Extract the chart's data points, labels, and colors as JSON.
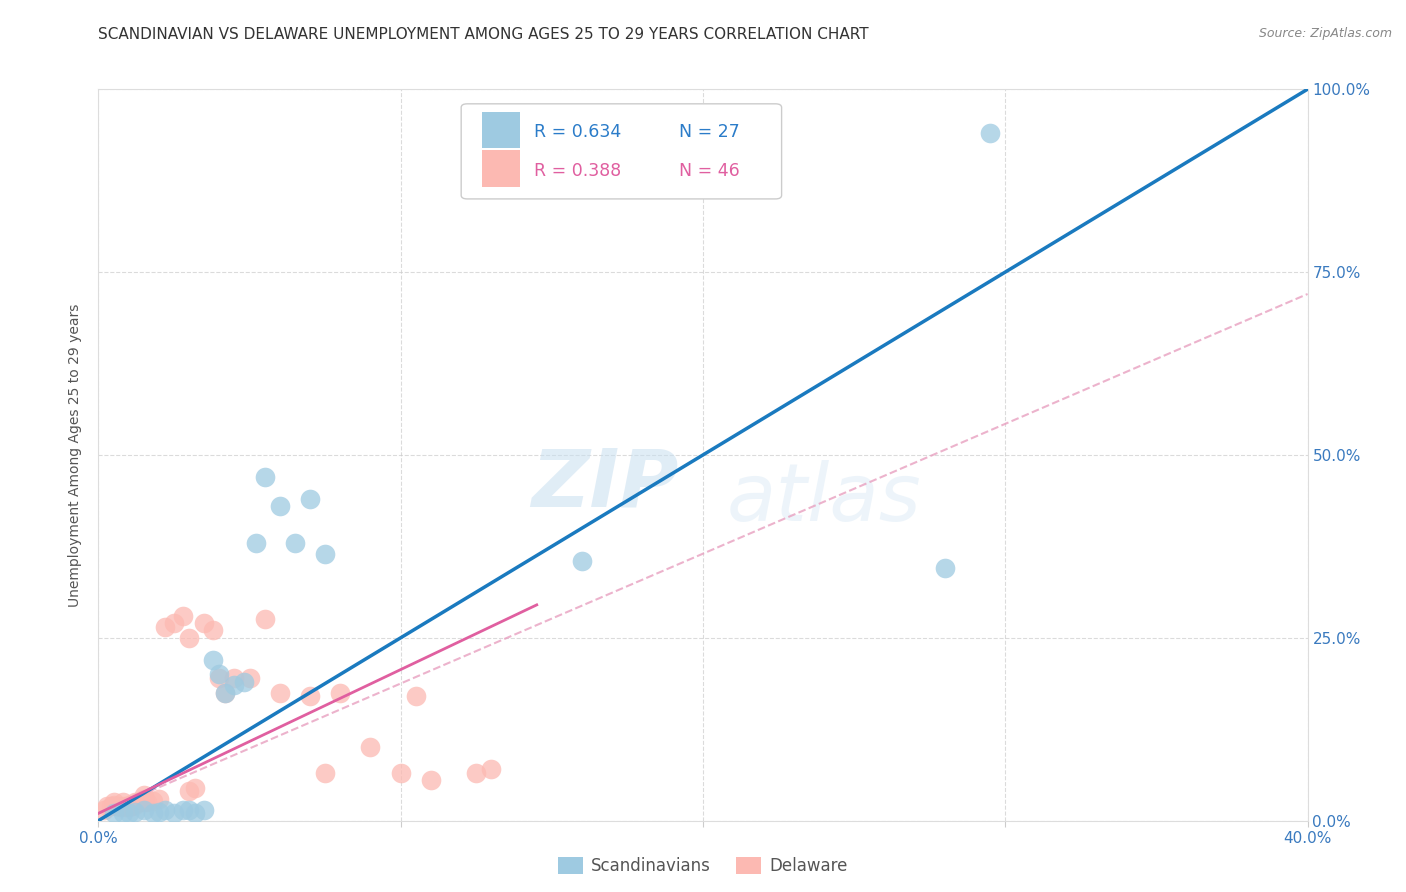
{
  "title": "SCANDINAVIAN VS DELAWARE UNEMPLOYMENT AMONG AGES 25 TO 29 YEARS CORRELATION CHART",
  "source": "Source: ZipAtlas.com",
  "ylabel": "Unemployment Among Ages 25 to 29 years",
  "xlim": [
    0.0,
    0.4
  ],
  "ylim": [
    0.0,
    1.0
  ],
  "xticks": [
    0.0,
    0.1,
    0.2,
    0.3,
    0.4
  ],
  "yticks": [
    0.0,
    0.25,
    0.5,
    0.75,
    1.0
  ],
  "xticklabels": [
    "0.0%",
    "",
    "",
    "",
    "40.0%"
  ],
  "yticklabels": [
    "0.0%",
    "25.0%",
    "50.0%",
    "75.0%",
    "100.0%"
  ],
  "title_fontsize": 11,
  "axis_label_fontsize": 10,
  "tick_fontsize": 11,
  "blue_color": "#9ecae1",
  "pink_color": "#fcb9b2",
  "blue_line_color": "#1a7abf",
  "pink_line_color": "#e05fa0",
  "pink_dash_color": "#e8a0c0",
  "legend_R_blue": "R = 0.634",
  "legend_N_blue": "N = 27",
  "legend_R_pink": "R = 0.388",
  "legend_N_pink": "N = 46",
  "watermark_zip": "ZIP",
  "watermark_atlas": "atlas",
  "blue_scatter_x": [
    0.005,
    0.008,
    0.01,
    0.012,
    0.015,
    0.018,
    0.02,
    0.022,
    0.025,
    0.028,
    0.03,
    0.032,
    0.035,
    0.038,
    0.04,
    0.042,
    0.045,
    0.048,
    0.052,
    0.055,
    0.06,
    0.065,
    0.07,
    0.075,
    0.16,
    0.28,
    0.295
  ],
  "blue_scatter_y": [
    0.01,
    0.01,
    0.01,
    0.012,
    0.015,
    0.01,
    0.012,
    0.015,
    0.01,
    0.015,
    0.015,
    0.01,
    0.015,
    0.22,
    0.2,
    0.175,
    0.185,
    0.19,
    0.38,
    0.47,
    0.43,
    0.38,
    0.44,
    0.365,
    0.355,
    0.345,
    0.94
  ],
  "pink_scatter_x": [
    0.002,
    0.003,
    0.004,
    0.005,
    0.005,
    0.006,
    0.007,
    0.008,
    0.008,
    0.009,
    0.01,
    0.01,
    0.01,
    0.011,
    0.012,
    0.012,
    0.013,
    0.015,
    0.015,
    0.015,
    0.016,
    0.018,
    0.02,
    0.022,
    0.025,
    0.028,
    0.03,
    0.03,
    0.032,
    0.035,
    0.038,
    0.04,
    0.042,
    0.045,
    0.05,
    0.055,
    0.06,
    0.07,
    0.075,
    0.08,
    0.09,
    0.1,
    0.105,
    0.11,
    0.125,
    0.13
  ],
  "pink_scatter_y": [
    0.015,
    0.02,
    0.02,
    0.022,
    0.025,
    0.02,
    0.018,
    0.02,
    0.025,
    0.018,
    0.018,
    0.02,
    0.022,
    0.02,
    0.022,
    0.025,
    0.025,
    0.025,
    0.03,
    0.035,
    0.025,
    0.027,
    0.03,
    0.265,
    0.27,
    0.28,
    0.04,
    0.25,
    0.045,
    0.27,
    0.26,
    0.195,
    0.175,
    0.195,
    0.195,
    0.275,
    0.175,
    0.17,
    0.065,
    0.175,
    0.1,
    0.065,
    0.17,
    0.055,
    0.065,
    0.07
  ],
  "blue_line_x": [
    0.0,
    0.4
  ],
  "blue_line_y": [
    0.0,
    1.0
  ],
  "pink_solid_line_x": [
    0.0,
    0.145
  ],
  "pink_solid_line_y": [
    0.01,
    0.295
  ],
  "pink_dash_line_x": [
    0.0,
    0.4
  ],
  "pink_dash_line_y": [
    0.01,
    0.72
  ]
}
